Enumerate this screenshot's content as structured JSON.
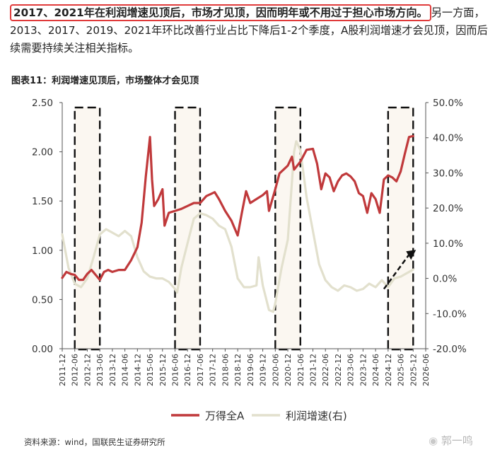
{
  "intro": {
    "highlight": "2017、2021年在利润增速见顶后，市场才见顶，因而明年或不用过于担心市场方向。",
    "rest": "另一方面，2013、2017、2019、2021年环比改善行业占比下降后1-2个季度，A股利润增速才会见顶，因而后续需要持续关注相关指标。"
  },
  "figure": {
    "title": "图表11：利润增速见顶后，市场整体才会见顶",
    "source": "资料来源：wind，国联民生证券研究所",
    "watermark": "郭一鸣"
  },
  "colors": {
    "index_line": "#c0393b",
    "profit_line": "#e2e0cd",
    "highlight_box": "#e03a3a",
    "shade": "#fbf7f1"
  },
  "chart_data": {
    "type": "line",
    "x_start": "2011-12",
    "x_end": "2026-06",
    "x_ticks": [
      "2011-12",
      "2012-06",
      "2012-12",
      "2013-06",
      "2013-12",
      "2014-06",
      "2014-12",
      "2015-06",
      "2015-12",
      "2016-06",
      "2016-12",
      "2017-06",
      "2017-12",
      "2018-06",
      "2018-12",
      "2019-06",
      "2019-12",
      "2020-06",
      "2020-12",
      "2021-06",
      "2021-12",
      "2022-06",
      "2022-12",
      "2023-06",
      "2023-12",
      "2024-06",
      "2024-12",
      "2025-06",
      "2025-12",
      "2026-06"
    ],
    "y_left": {
      "min": 0,
      "max": 2.5,
      "ticks": [
        "0.00",
        "0.50",
        "1.00",
        "1.50",
        "2.00",
        "2.50"
      ]
    },
    "y_right": {
      "min": -20,
      "max": 50,
      "ticks": [
        "-20.0%",
        "-10.0%",
        "0.0%",
        "10.0%",
        "20.0%",
        "30.0%",
        "40.0%",
        "50.0%"
      ]
    },
    "grid": false,
    "legend_position": "bottom",
    "series": [
      {
        "name": "万得全A",
        "axis": "left",
        "points": [
          [
            "2011-12",
            0.72
          ],
          [
            "2012-02",
            0.78
          ],
          [
            "2012-04",
            0.76
          ],
          [
            "2012-06",
            0.75
          ],
          [
            "2012-08",
            0.7
          ],
          [
            "2012-10",
            0.7
          ],
          [
            "2012-12",
            0.76
          ],
          [
            "2013-02",
            0.8
          ],
          [
            "2013-04",
            0.75
          ],
          [
            "2013-06",
            0.7
          ],
          [
            "2013-08",
            0.78
          ],
          [
            "2013-10",
            0.8
          ],
          [
            "2013-12",
            0.78
          ],
          [
            "2014-03",
            0.8
          ],
          [
            "2014-06",
            0.8
          ],
          [
            "2014-09",
            0.9
          ],
          [
            "2014-12",
            1.03
          ],
          [
            "2015-02",
            1.28
          ],
          [
            "2015-04",
            1.75
          ],
          [
            "2015-06",
            2.15
          ],
          [
            "2015-07",
            1.72
          ],
          [
            "2015-08",
            1.45
          ],
          [
            "2015-10",
            1.52
          ],
          [
            "2015-12",
            1.62
          ],
          [
            "2016-01",
            1.25
          ],
          [
            "2016-03",
            1.38
          ],
          [
            "2016-06",
            1.4
          ],
          [
            "2016-09",
            1.42
          ],
          [
            "2016-12",
            1.45
          ],
          [
            "2017-03",
            1.48
          ],
          [
            "2017-06",
            1.48
          ],
          [
            "2017-09",
            1.55
          ],
          [
            "2017-12",
            1.58
          ],
          [
            "2018-01",
            1.59
          ],
          [
            "2018-03",
            1.52
          ],
          [
            "2018-06",
            1.4
          ],
          [
            "2018-09",
            1.3
          ],
          [
            "2018-12",
            1.15
          ],
          [
            "2019-02",
            1.38
          ],
          [
            "2019-04",
            1.6
          ],
          [
            "2019-06",
            1.48
          ],
          [
            "2019-09",
            1.52
          ],
          [
            "2019-12",
            1.56
          ],
          [
            "2020-02",
            1.6
          ],
          [
            "2020-03",
            1.4
          ],
          [
            "2020-06",
            1.62
          ],
          [
            "2020-08",
            1.78
          ],
          [
            "2020-10",
            1.82
          ],
          [
            "2020-12",
            1.86
          ],
          [
            "2021-02",
            1.95
          ],
          [
            "2021-03",
            1.82
          ],
          [
            "2021-06",
            1.9
          ],
          [
            "2021-09",
            2.02
          ],
          [
            "2021-12",
            2.03
          ],
          [
            "2022-02",
            1.88
          ],
          [
            "2022-04",
            1.62
          ],
          [
            "2022-06",
            1.78
          ],
          [
            "2022-08",
            1.74
          ],
          [
            "2022-10",
            1.6
          ],
          [
            "2022-12",
            1.7
          ],
          [
            "2023-02",
            1.76
          ],
          [
            "2023-04",
            1.78
          ],
          [
            "2023-06",
            1.75
          ],
          [
            "2023-08",
            1.7
          ],
          [
            "2023-10",
            1.58
          ],
          [
            "2023-12",
            1.55
          ],
          [
            "2024-02",
            1.38
          ],
          [
            "2024-04",
            1.58
          ],
          [
            "2024-06",
            1.52
          ],
          [
            "2024-08",
            1.38
          ],
          [
            "2024-10",
            1.72
          ],
          [
            "2024-12",
            1.76
          ],
          [
            "2025-02",
            1.74
          ],
          [
            "2025-04",
            1.7
          ],
          [
            "2025-06",
            1.8
          ],
          [
            "2025-08",
            1.98
          ],
          [
            "2025-10",
            2.15
          ],
          [
            "2025-12",
            2.16
          ]
        ]
      },
      {
        "name": "利润增速(右)",
        "axis": "right",
        "points": [
          [
            "2011-12",
            12.5
          ],
          [
            "2012-03",
            3.0
          ],
          [
            "2012-06",
            -1.5
          ],
          [
            "2012-09",
            -2.5
          ],
          [
            "2012-12",
            0.0
          ],
          [
            "2013-03",
            6.0
          ],
          [
            "2013-06",
            12.5
          ],
          [
            "2013-09",
            14.0
          ],
          [
            "2013-12",
            13.0
          ],
          [
            "2014-03",
            12.0
          ],
          [
            "2014-06",
            13.5
          ],
          [
            "2014-09",
            12.0
          ],
          [
            "2014-12",
            6.0
          ],
          [
            "2015-03",
            2.0
          ],
          [
            "2015-06",
            0.5
          ],
          [
            "2015-09",
            0.0
          ],
          [
            "2015-12",
            0.0
          ],
          [
            "2016-03",
            -1.0
          ],
          [
            "2016-06",
            -3.0
          ],
          [
            "2016-07",
            -4.0
          ],
          [
            "2016-09",
            3.0
          ],
          [
            "2016-12",
            10.0
          ],
          [
            "2017-03",
            17.0
          ],
          [
            "2017-06",
            18.5
          ],
          [
            "2017-09",
            18.0
          ],
          [
            "2017-12",
            17.0
          ],
          [
            "2018-03",
            15.0
          ],
          [
            "2018-06",
            14.0
          ],
          [
            "2018-09",
            9.0
          ],
          [
            "2018-12",
            0.0
          ],
          [
            "2019-03",
            -2.5
          ],
          [
            "2019-06",
            -2.5
          ],
          [
            "2019-09",
            -2.0
          ],
          [
            "2019-10",
            6.0
          ],
          [
            "2019-12",
            -2.0
          ],
          [
            "2020-03",
            -9.0
          ],
          [
            "2020-05",
            -9.5
          ],
          [
            "2020-06",
            -7.0
          ],
          [
            "2020-09",
            3.0
          ],
          [
            "2020-12",
            11.0
          ],
          [
            "2021-03",
            36.0
          ],
          [
            "2021-04",
            39.0
          ],
          [
            "2021-06",
            36.5
          ],
          [
            "2021-09",
            23.0
          ],
          [
            "2021-12",
            13.5
          ],
          [
            "2022-03",
            4.0
          ],
          [
            "2022-06",
            -0.5
          ],
          [
            "2022-09",
            -2.5
          ],
          [
            "2022-12",
            -3.5
          ],
          [
            "2023-03",
            -2.0
          ],
          [
            "2023-06",
            -2.5
          ],
          [
            "2023-09",
            -3.5
          ],
          [
            "2023-12",
            -3.0
          ],
          [
            "2024-03",
            -1.5
          ],
          [
            "2024-06",
            -2.5
          ],
          [
            "2024-09",
            -0.5
          ],
          [
            "2024-12",
            -2.5
          ],
          [
            "2025-03",
            0.0
          ],
          [
            "2025-06",
            0.5
          ],
          [
            "2025-09",
            1.5
          ],
          [
            "2025-12",
            2.5
          ]
        ]
      }
    ],
    "shaded_periods": [
      [
        "2012-06",
        "2013-06"
      ],
      [
        "2016-06",
        "2017-06"
      ],
      [
        "2020-06",
        "2021-06"
      ],
      [
        "2024-12",
        "2025-12"
      ]
    ],
    "arrow": {
      "from": [
        "2024-10",
        -3.0
      ],
      "to": [
        "2025-12",
        7.5
      ]
    }
  }
}
